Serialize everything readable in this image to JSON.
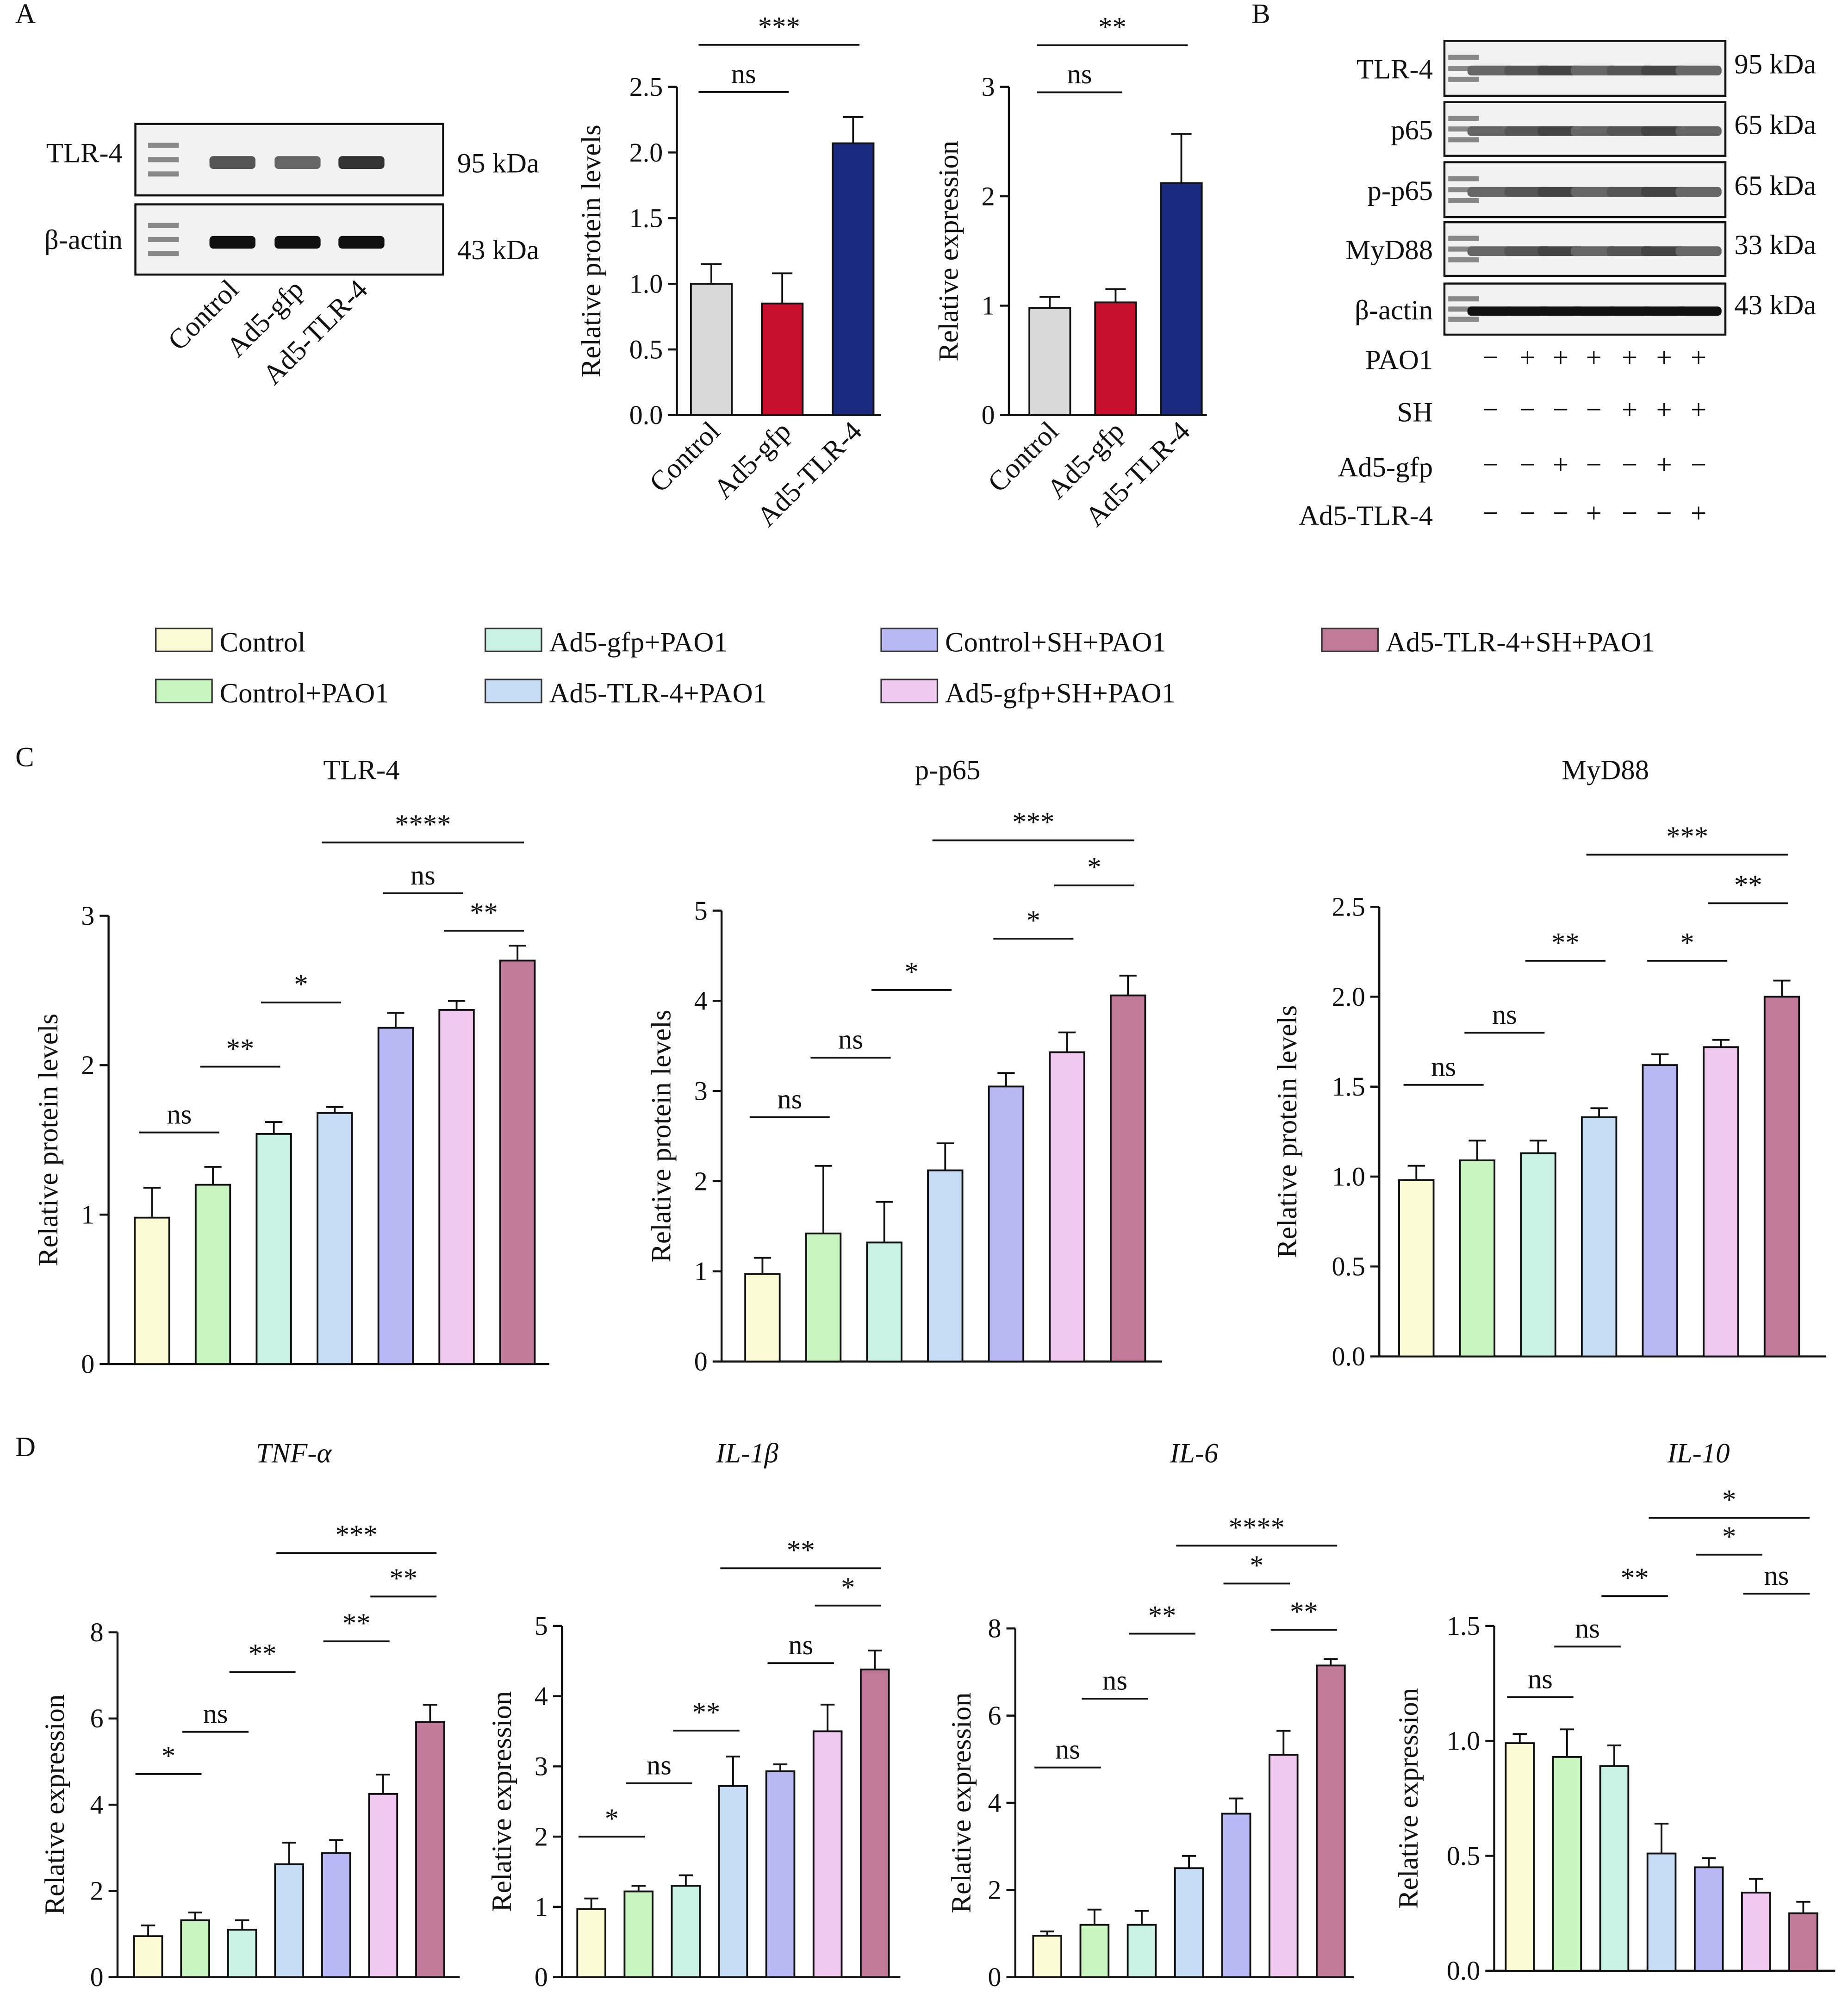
{
  "panels": [
    "A",
    "B",
    "C",
    "D"
  ],
  "blots": {
    "A": {
      "rows": [
        {
          "label": "TLR-4",
          "size": "95 kDa"
        },
        {
          "label": "β-actin",
          "size": "43 kDa"
        }
      ],
      "lanes": [
        "Control",
        "Ad5-gfp",
        "Ad5-TLR-4"
      ]
    },
    "B": {
      "rows": [
        {
          "label": "TLR-4",
          "size": "95 kDa"
        },
        {
          "label": "p65",
          "size": "65 kDa"
        },
        {
          "label": "p-p65",
          "size": "65 kDa"
        },
        {
          "label": "MyD88",
          "size": "33 kDa"
        },
        {
          "label": "β-actin",
          "size": "43 kDa"
        }
      ],
      "treatments": [
        {
          "label": "PAO1",
          "signs": [
            "−",
            "+",
            "+",
            "+",
            "+",
            "+",
            "+"
          ]
        },
        {
          "label": "SH",
          "signs": [
            "−",
            "−",
            "−",
            "−",
            "+",
            "+",
            "+"
          ]
        },
        {
          "label": "Ad5-gfp",
          "signs": [
            "−",
            "−",
            "+",
            "−",
            "−",
            "+",
            "−"
          ]
        },
        {
          "label": "Ad5-TLR-4",
          "signs": [
            "−",
            "−",
            "−",
            "+",
            "−",
            "−",
            "+"
          ]
        }
      ]
    }
  },
  "legend": [
    {
      "name": "Control",
      "color": "#fdfbd6"
    },
    {
      "name": "Control+PAO1",
      "color": "#c8f5c0"
    },
    {
      "name": "Ad5-gfp+PAO1",
      "color": "#c9f2e4"
    },
    {
      "name": "Ad5-TLR-4+PAO1",
      "color": "#c7dcf5"
    },
    {
      "name": "Control+SH+PAO1",
      "color": "#b8b8f5"
    },
    {
      "name": "Ad5-gfp+SH+PAO1",
      "color": "#f0c8f0"
    },
    {
      "name": "Ad5-TLR-4+SH+PAO1",
      "color": "#c27a9a"
    }
  ],
  "chart_data": [
    {
      "type": "bar",
      "ylabel": "Relative protein levels",
      "categories": [
        "Control",
        "Ad5-gfp",
        "Ad5-TLR-4"
      ],
      "colors": [
        "#d9d9d9",
        "#c8102e",
        "#1a2a7e"
      ],
      "values": [
        1.0,
        0.85,
        2.07
      ],
      "errors": [
        0.15,
        0.23,
        0.2
      ],
      "ylim": [
        0,
        2.5
      ],
      "yticks": [
        {
          "value": 0,
          "label": "0.0"
        },
        0.5,
        {
          "value": 1,
          "label": "1.0"
        },
        1.5,
        {
          "value": 2,
          "label": "2.0"
        },
        2.5
      ],
      "brackets": [
        {
          "from": 0,
          "to": 1,
          "y": 2.46,
          "label": "ns"
        },
        {
          "from": 0,
          "to": 2,
          "y": 2.82,
          "label": "***"
        }
      ]
    },
    {
      "type": "bar",
      "ylabel": "Relative expression",
      "categories": [
        "Control",
        "Ad5-gfp",
        "Ad5-TLR-4"
      ],
      "colors": [
        "#d9d9d9",
        "#c8102e",
        "#1a2a7e"
      ],
      "values": [
        0.98,
        1.03,
        2.12
      ],
      "errors": [
        0.1,
        0.12,
        0.45
      ],
      "ylim": [
        0,
        3
      ],
      "yticks": [
        0,
        1,
        2,
        3
      ],
      "brackets": [
        {
          "from": 0,
          "to": 1,
          "y": 2.95,
          "label": "ns"
        },
        {
          "from": 0,
          "to": 2,
          "y": 3.38,
          "label": "**"
        }
      ]
    },
    {
      "type": "bar",
      "title": "TLR-4",
      "ylabel": "Relative protein levels",
      "values": [
        0.98,
        1.2,
        1.54,
        1.68,
        2.25,
        2.37,
        2.7
      ],
      "errors": [
        0.2,
        0.12,
        0.08,
        0.04,
        0.1,
        0.06,
        0.1
      ],
      "ylim": [
        0,
        3
      ],
      "yticks": [
        0,
        1,
        2,
        3
      ],
      "brackets": [
        {
          "from": 0,
          "to": 1,
          "y": 1.55,
          "label": "ns"
        },
        {
          "from": 1,
          "to": 2,
          "y": 1.99,
          "label": "**"
        },
        {
          "from": 2,
          "to": 3,
          "y": 2.42,
          "label": "*"
        },
        {
          "from": 4,
          "to": 5,
          "y": 3.15,
          "label": "ns"
        },
        {
          "from": 5,
          "to": 6,
          "y": 2.9,
          "label": "**"
        },
        {
          "from": 3,
          "to": 6,
          "y": 3.49,
          "label": "****"
        }
      ]
    },
    {
      "type": "bar",
      "title": "p-p65",
      "ylabel": "Relative protein levels",
      "values": [
        0.97,
        1.42,
        1.32,
        2.12,
        3.05,
        3.43,
        4.06
      ],
      "errors": [
        0.18,
        0.75,
        0.45,
        0.3,
        0.15,
        0.22,
        0.22
      ],
      "ylim": [
        0,
        5
      ],
      "yticks": [
        0,
        1,
        2,
        3,
        4,
        5
      ],
      "brackets": [
        {
          "from": 0,
          "to": 1,
          "y": 2.71,
          "label": "ns"
        },
        {
          "from": 1,
          "to": 2,
          "y": 3.37,
          "label": "ns"
        },
        {
          "from": 2,
          "to": 3,
          "y": 4.12,
          "label": "*"
        },
        {
          "from": 4,
          "to": 5,
          "y": 4.69,
          "label": "*"
        },
        {
          "from": 5,
          "to": 6,
          "y": 5.28,
          "label": "*"
        },
        {
          "from": 3,
          "to": 6,
          "y": 5.78,
          "label": "***"
        }
      ]
    },
    {
      "type": "bar",
      "title": "MyD88",
      "ylabel": "Relative protein levels",
      "values": [
        0.98,
        1.09,
        1.13,
        1.33,
        1.62,
        1.72,
        2.0
      ],
      "errors": [
        0.08,
        0.11,
        0.07,
        0.05,
        0.06,
        0.04,
        0.09
      ],
      "ylim": [
        0,
        2.5
      ],
      "yticks": [
        {
          "value": 0,
          "label": "0.0"
        },
        0.5,
        {
          "value": 1,
          "label": "1.0"
        },
        1.5,
        {
          "value": 2,
          "label": "2.0"
        },
        2.5
      ],
      "brackets": [
        {
          "from": 0,
          "to": 1,
          "y": 1.51,
          "label": "ns"
        },
        {
          "from": 1,
          "to": 2,
          "y": 1.8,
          "label": "ns"
        },
        {
          "from": 2,
          "to": 3,
          "y": 2.2,
          "label": "**"
        },
        {
          "from": 4,
          "to": 5,
          "y": 2.2,
          "label": "*"
        },
        {
          "from": 5,
          "to": 6,
          "y": 2.52,
          "label": "**"
        },
        {
          "from": 3,
          "to": 6,
          "y": 2.79,
          "label": "***"
        }
      ]
    },
    {
      "type": "bar",
      "title": "TNF-α",
      "title_style": "italic",
      "ylabel": "Relative expression",
      "values": [
        0.95,
        1.32,
        1.1,
        2.62,
        2.88,
        4.25,
        5.92
      ],
      "errors": [
        0.25,
        0.18,
        0.22,
        0.5,
        0.3,
        0.45,
        0.4
      ],
      "ylim": [
        0,
        8
      ],
      "yticks": [
        0,
        2,
        4,
        6,
        8
      ],
      "brackets": [
        {
          "from": 0,
          "to": 1,
          "y": 4.71,
          "label": "*"
        },
        {
          "from": 1,
          "to": 2,
          "y": 5.69,
          "label": "ns"
        },
        {
          "from": 2,
          "to": 3,
          "y": 7.08,
          "label": "**"
        },
        {
          "from": 4,
          "to": 5,
          "y": 7.79,
          "label": "**"
        },
        {
          "from": 5,
          "to": 6,
          "y": 8.83,
          "label": "**"
        },
        {
          "from": 3,
          "to": 6,
          "y": 9.84,
          "label": "***"
        }
      ]
    },
    {
      "type": "bar",
      "title": "IL-1β",
      "title_style": "italic",
      "ylabel": "Relative expression",
      "values": [
        0.97,
        1.22,
        1.3,
        2.72,
        2.93,
        3.5,
        4.38
      ],
      "errors": [
        0.15,
        0.08,
        0.15,
        0.42,
        0.1,
        0.38,
        0.27
      ],
      "ylim": [
        0,
        5
      ],
      "yticks": [
        0,
        1,
        2,
        3,
        4,
        5
      ],
      "brackets": [
        {
          "from": 0,
          "to": 1,
          "y": 2.0,
          "label": "*"
        },
        {
          "from": 1,
          "to": 2,
          "y": 2.76,
          "label": "ns"
        },
        {
          "from": 2,
          "to": 3,
          "y": 3.51,
          "label": "**"
        },
        {
          "from": 4,
          "to": 5,
          "y": 4.47,
          "label": "ns"
        },
        {
          "from": 5,
          "to": 6,
          "y": 5.29,
          "label": "*"
        },
        {
          "from": 3,
          "to": 6,
          "y": 5.82,
          "label": "**"
        }
      ]
    },
    {
      "type": "bar",
      "title": "IL-6",
      "title_style": "italic",
      "ylabel": "Relative expression",
      "values": [
        0.95,
        1.2,
        1.2,
        2.5,
        3.75,
        5.1,
        7.15
      ],
      "errors": [
        0.1,
        0.35,
        0.32,
        0.28,
        0.35,
        0.55,
        0.15
      ],
      "ylim": [
        0,
        8
      ],
      "yticks": [
        0,
        2,
        4,
        6,
        8
      ],
      "brackets": [
        {
          "from": 0,
          "to": 1,
          "y": 4.81,
          "label": "ns"
        },
        {
          "from": 1,
          "to": 2,
          "y": 6.39,
          "label": "ns"
        },
        {
          "from": 2,
          "to": 3,
          "y": 7.88,
          "label": "**"
        },
        {
          "from": 4,
          "to": 5,
          "y": 9.03,
          "label": "*"
        },
        {
          "from": 5,
          "to": 6,
          "y": 7.97,
          "label": "**"
        },
        {
          "from": 3,
          "to": 6,
          "y": 9.9,
          "label": "****"
        }
      ]
    },
    {
      "type": "bar",
      "title": "IL-10",
      "title_style": "italic",
      "ylabel": "Relative expression",
      "values": [
        0.99,
        0.93,
        0.89,
        0.51,
        0.45,
        0.34,
        0.25
      ],
      "errors": [
        0.04,
        0.12,
        0.09,
        0.13,
        0.04,
        0.06,
        0.05
      ],
      "ylim": [
        0,
        1.5
      ],
      "yticks": [
        {
          "value": 0,
          "label": "0.0"
        },
        0.5,
        {
          "value": 1,
          "label": "1.0"
        },
        1.5
      ],
      "brackets": [
        {
          "from": 0,
          "to": 1,
          "y": 1.19,
          "label": "ns"
        },
        {
          "from": 1,
          "to": 2,
          "y": 1.41,
          "label": "ns"
        },
        {
          "from": 2,
          "to": 3,
          "y": 1.63,
          "label": "**"
        },
        {
          "from": 4,
          "to": 5,
          "y": 1.81,
          "label": "*"
        },
        {
          "from": 5,
          "to": 6,
          "y": 1.64,
          "label": "ns"
        },
        {
          "from": 3,
          "to": 6,
          "y": 1.97,
          "label": "*"
        }
      ]
    }
  ]
}
